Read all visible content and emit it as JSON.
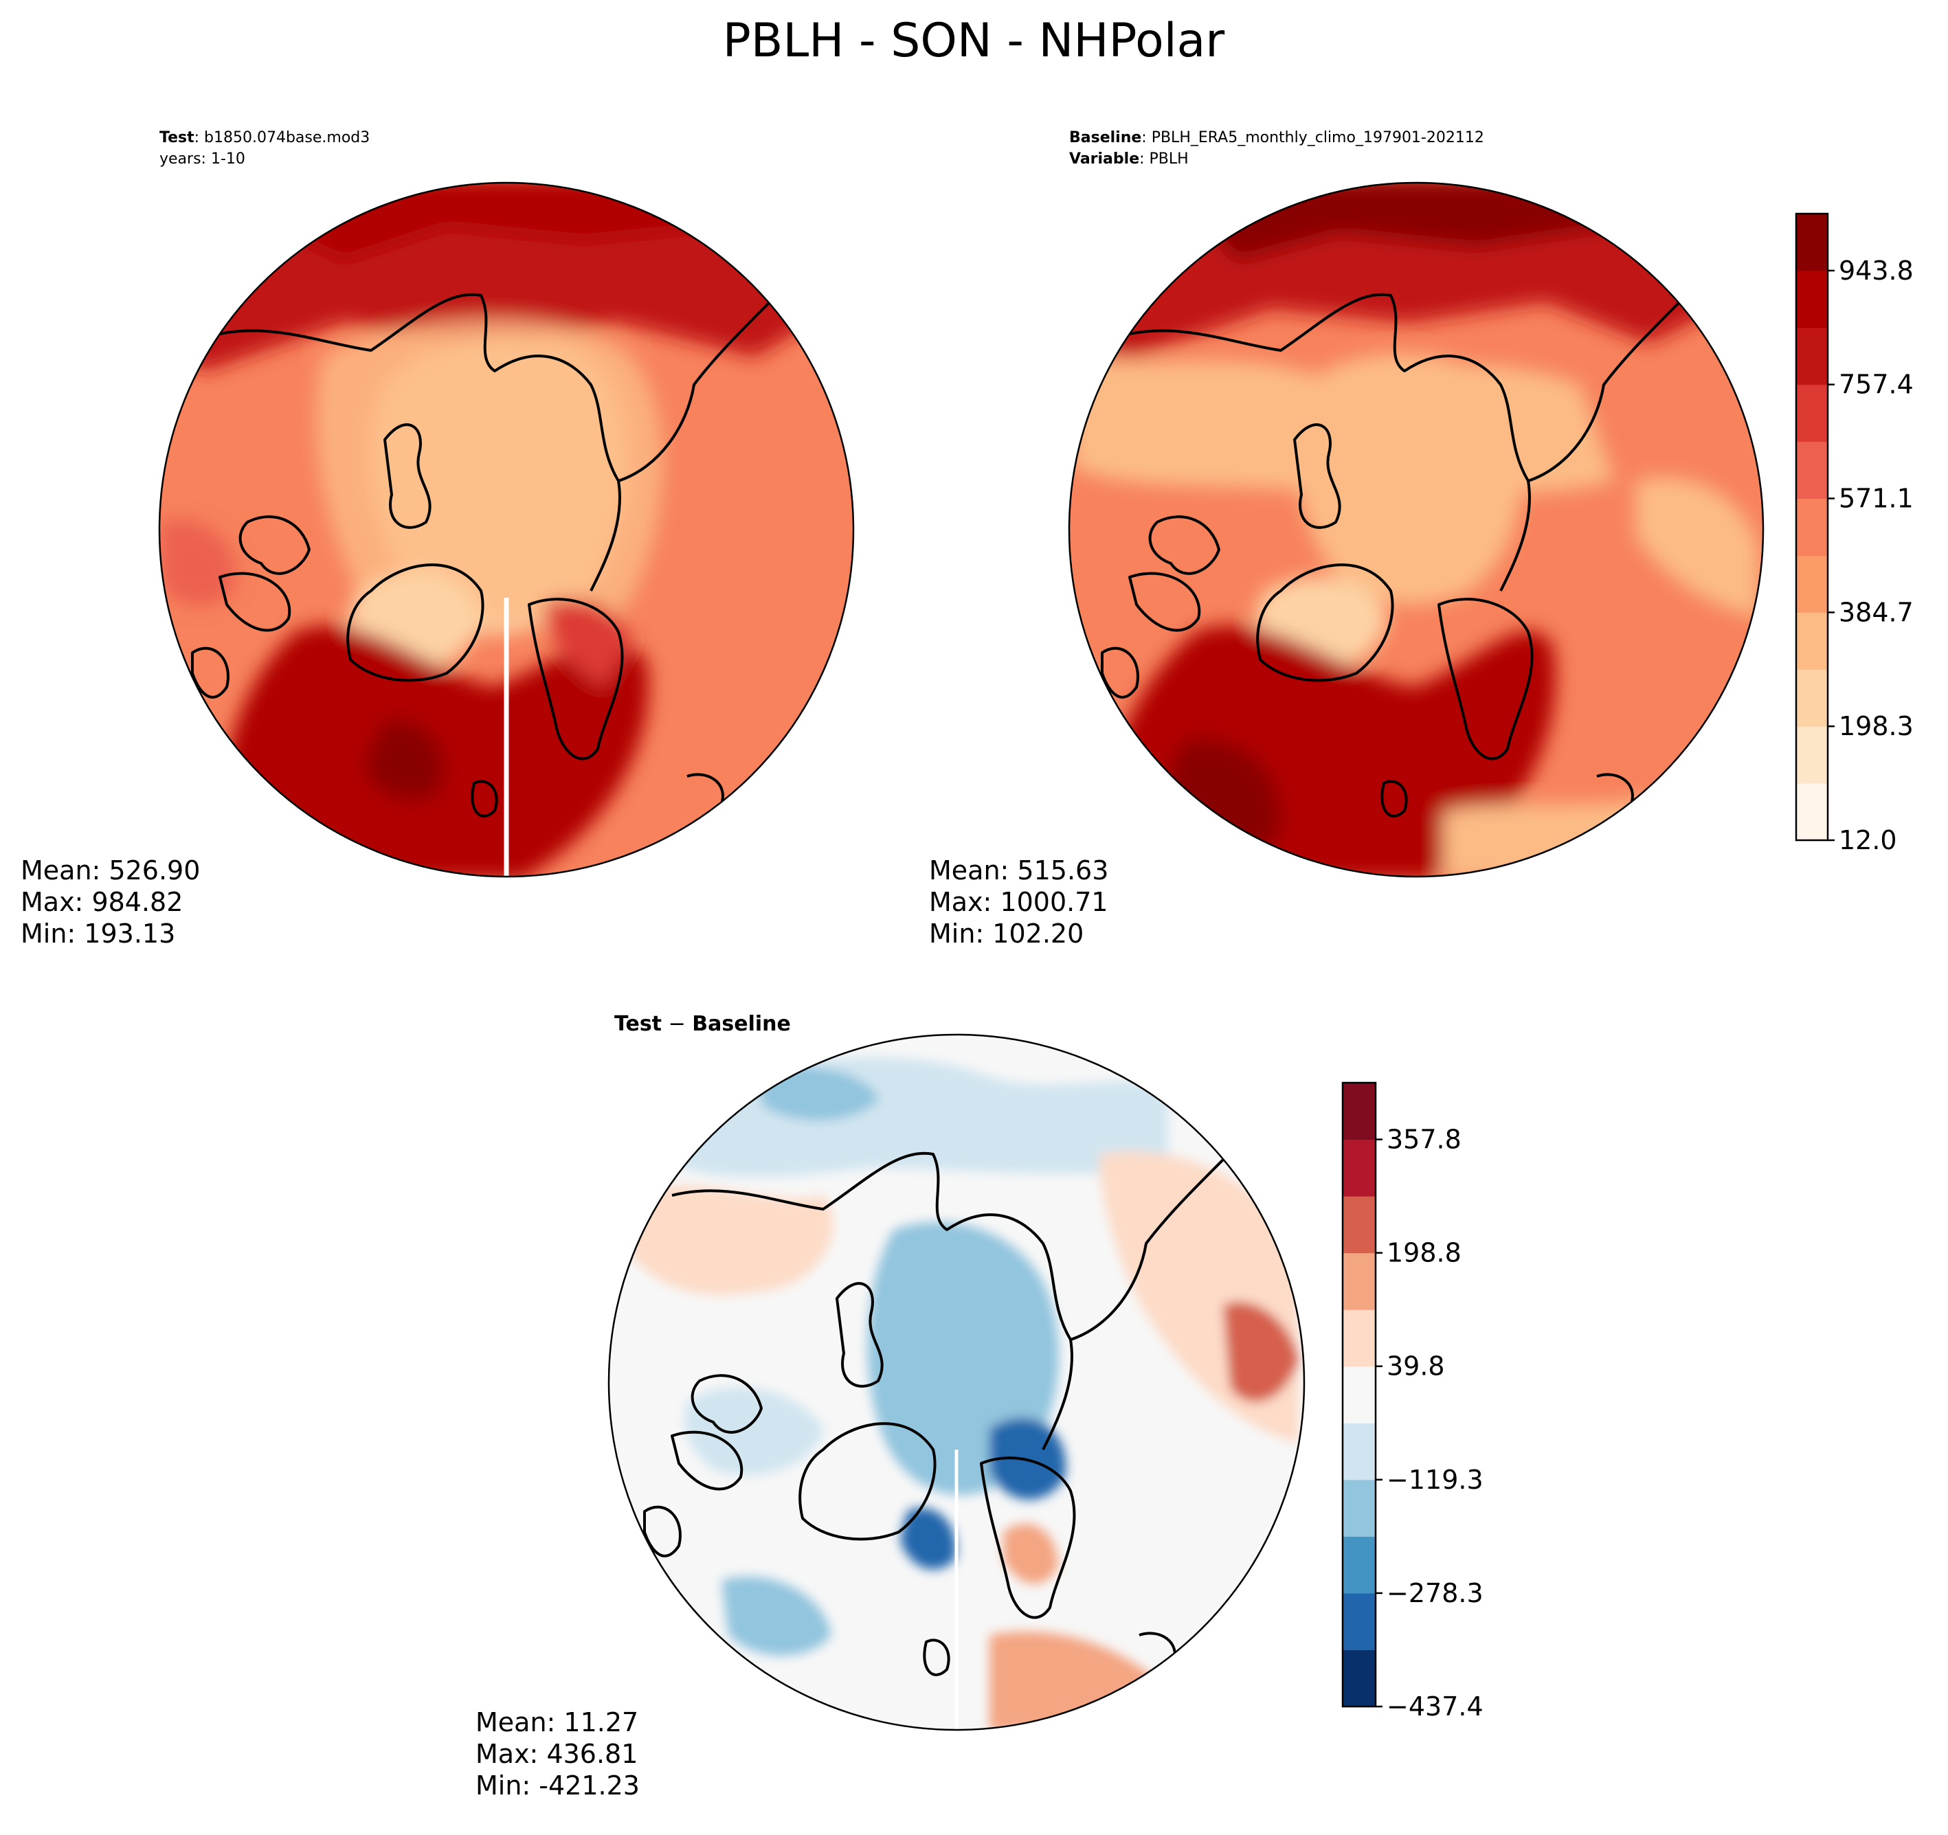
{
  "figure_title": "PBLH - SON - NHPolar",
  "panels": {
    "test": {
      "label_bold": "Test",
      "label_value": ": b1850.074base.mod3",
      "line2": "years: 1-10",
      "stats": {
        "mean": "Mean: 526.90",
        "max": "Max: 984.82",
        "min": "Min: 193.13"
      }
    },
    "baseline": {
      "label_bold": "Baseline",
      "label_value": ": PBLH_ERA5_monthly_climo_197901-202112",
      "line2_bold": "Variable",
      "line2_value": ": PBLH",
      "stats": {
        "mean": "Mean: 515.63",
        "max": "Max: 1000.71",
        "min": "Min: 102.20"
      }
    },
    "diff": {
      "label_bold": "Test",
      "label_minus": " − ",
      "label_bold2": "Baseline",
      "stats": {
        "mean": "Mean: 11.27",
        "max": "Max: 436.81",
        "min": "Min: -421.23"
      }
    }
  },
  "colors": {
    "orrd": [
      "#fff5eb",
      "#fde6c8",
      "#fdd3a5",
      "#fcbb85",
      "#fb9b68",
      "#f7825c",
      "#ec6150",
      "#dd3a34",
      "#c11514",
      "#b00000",
      "#890000"
    ],
    "rdbu": [
      "#08306b",
      "#2166ac",
      "#4393c3",
      "#92c5de",
      "#d1e5f0",
      "#f7f7f7",
      "#fddbc7",
      "#f4a582",
      "#d6604d",
      "#b2182b",
      "#800d1f"
    ],
    "coast": "#000000"
  },
  "chart_data": [
    {
      "type": "heatmap",
      "title": "Test : b1850.074base.mod3",
      "projection": "north polar stereographic",
      "season": "SON",
      "variable": "PBLH",
      "stats": {
        "mean": 526.9,
        "max": 984.82,
        "min": 193.13
      }
    },
    {
      "type": "heatmap",
      "title": "Baseline : PBLH_ERA5_monthly_climo_197901-202112",
      "projection": "north polar stereographic",
      "season": "SON",
      "variable": "PBLH",
      "stats": {
        "mean": 515.63,
        "max": 1000.71,
        "min": 102.2
      },
      "colorbar": {
        "ticks": [
          "12.0",
          "198.3",
          "384.7",
          "571.1",
          "757.4",
          "943.8"
        ],
        "range": [
          12.0,
          1036.9
        ]
      }
    },
    {
      "type": "heatmap",
      "title": "Test − Baseline",
      "projection": "north polar stereographic",
      "season": "SON",
      "variable": "PBLH",
      "stats": {
        "mean": 11.27,
        "max": 436.81,
        "min": -421.23
      },
      "colorbar": {
        "ticks": [
          "−437.4",
          "−278.3",
          "−119.3",
          "39.8",
          "198.8",
          "357.8"
        ],
        "range": [
          -437.4,
          437.4
        ]
      }
    }
  ]
}
